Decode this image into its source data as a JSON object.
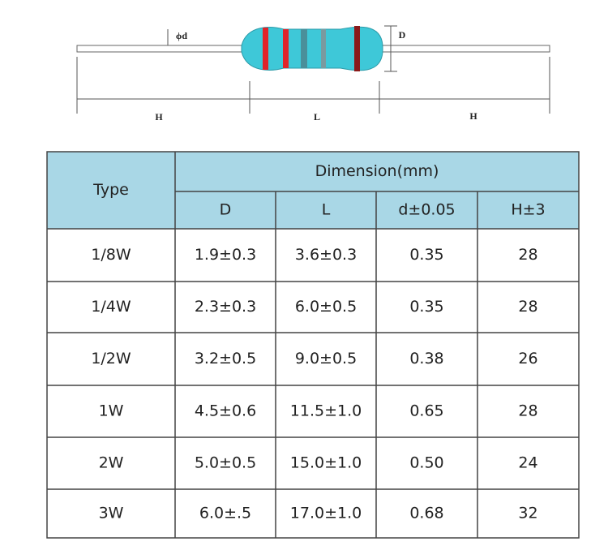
{
  "diagram": {
    "labels": {
      "wire_diameter": "ϕd",
      "body_diameter": "D",
      "lead_left": "H",
      "body_length": "L",
      "lead_right": "H"
    }
  },
  "table": {
    "header": {
      "type": "Type",
      "group": "Dimension(mm)",
      "columns": [
        "D",
        "L",
        "d±0.05",
        "H±3"
      ]
    },
    "rows": [
      [
        "1/8W",
        "1.9±0.3",
        "3.6±0.3",
        "0.35",
        "28"
      ],
      [
        "1/4W",
        "2.3±0.3",
        "6.0±0.5",
        "0.35",
        "28"
      ],
      [
        "1/2W",
        "3.2±0.5",
        "9.0±0.5",
        "0.38",
        "26"
      ],
      [
        "1W",
        "4.5±0.6",
        "11.5±1.0",
        "0.65",
        "28"
      ],
      [
        "2W",
        "5.0±0.5",
        "15.0±1.0",
        "0.50",
        "24"
      ],
      [
        "3W",
        "6.0±.5",
        "17.0±1.0",
        "0.68",
        "32"
      ]
    ]
  }
}
